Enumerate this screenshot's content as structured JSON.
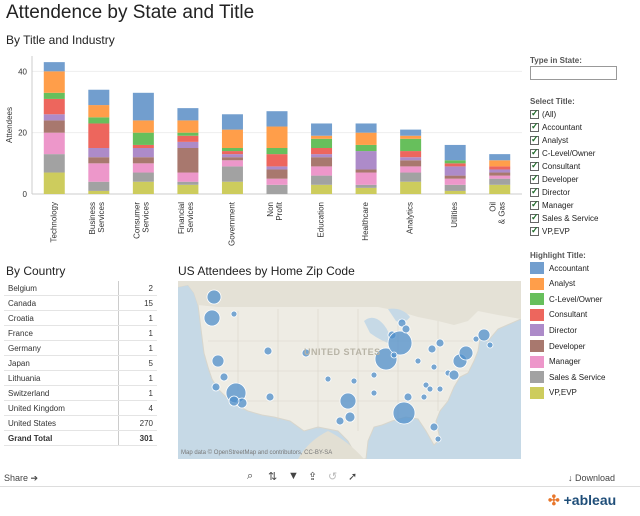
{
  "title": "Attendence by State and Title",
  "bar_section_title": "By Title and Industry",
  "country_section_title": "By Country",
  "map_section_title": "US Attendees by Home Zip Code",
  "map_attribution": "Map data © OpenStreetMap and contributors, CC-BY-SA",
  "map_label": "UNITED STATES",
  "type_in_state": {
    "label": "Type in State:",
    "value": ""
  },
  "select_title": {
    "label": "Select Title:",
    "options": [
      "(All)",
      "Accountant",
      "Analyst",
      "C-Level/Owner",
      "Consultant",
      "Developer",
      "Director",
      "Manager",
      "Sales & Service",
      "VP,EVP"
    ]
  },
  "highlight_title": {
    "label": "Highlight Title:",
    "items": [
      {
        "label": "Accountant",
        "color": "#729ece"
      },
      {
        "label": "Analyst",
        "color": "#ff9e4a"
      },
      {
        "label": "C-Level/Owner",
        "color": "#67bf5c"
      },
      {
        "label": "Consultant",
        "color": "#ed665d"
      },
      {
        "label": "Director",
        "color": "#ad8bc9"
      },
      {
        "label": "Developer",
        "color": "#a8786e"
      },
      {
        "label": "Manager",
        "color": "#ed97ca"
      },
      {
        "label": "Sales & Service",
        "color": "#a2a2a2"
      },
      {
        "label": "VP,EVP",
        "color": "#cdcc5d"
      }
    ]
  },
  "countries": [
    {
      "name": "Belgium",
      "value": "2"
    },
    {
      "name": "Canada",
      "value": "15"
    },
    {
      "name": "Croatia",
      "value": "1"
    },
    {
      "name": "France",
      "value": "1"
    },
    {
      "name": "Germany",
      "value": "1"
    },
    {
      "name": "Japan",
      "value": "5"
    },
    {
      "name": "Lithuania",
      "value": "1"
    },
    {
      "name": "Switzerland",
      "value": "1"
    },
    {
      "name": "United Kingdom",
      "value": "4"
    },
    {
      "name": "United States",
      "value": "270"
    }
  ],
  "grand_total": {
    "label": "Grand Total",
    "value": "301"
  },
  "footer": {
    "share": "Share",
    "download": "Download",
    "brand": "+ableau"
  },
  "chart_data": {
    "type": "bar",
    "stacked": true,
    "ylabel": "Attendees",
    "yticks": [
      0,
      20,
      40
    ],
    "ylim": [
      0,
      45
    ],
    "categories": [
      "Technology",
      "Business Services",
      "Consumer Services",
      "Financial Services",
      "Government",
      "Non Profit",
      "Education",
      "Healthcare",
      "Analytics",
      "Utilities",
      "Oil & Gas"
    ],
    "series": [
      {
        "name": "VP,EVP",
        "color": "#cdcc5d",
        "values": [
          7,
          1,
          4,
          3,
          4,
          0,
          3,
          2,
          4,
          1,
          3
        ]
      },
      {
        "name": "Sales & Service",
        "color": "#a2a2a2",
        "values": [
          6,
          3,
          3,
          1,
          5,
          3,
          3,
          1,
          3,
          2,
          2
        ]
      },
      {
        "name": "Manager",
        "color": "#ed97ca",
        "values": [
          7,
          6,
          3,
          3,
          2,
          2,
          3,
          4,
          2,
          2,
          1
        ]
      },
      {
        "name": "Developer",
        "color": "#a8786e",
        "values": [
          4,
          2,
          2,
          8,
          1,
          3,
          3,
          1,
          2,
          1,
          1
        ]
      },
      {
        "name": "Director",
        "color": "#ad8bc9",
        "values": [
          2,
          3,
          3,
          2,
          1,
          1,
          1,
          6,
          1,
          3,
          1
        ]
      },
      {
        "name": "Consultant",
        "color": "#ed665d",
        "values": [
          5,
          8,
          1,
          2,
          1,
          4,
          2,
          0,
          2,
          1,
          1
        ]
      },
      {
        "name": "C-Level/Owner",
        "color": "#67bf5c",
        "values": [
          2,
          2,
          4,
          1,
          1,
          2,
          3,
          2,
          4,
          1,
          0
        ]
      },
      {
        "name": "Analyst",
        "color": "#ff9e4a",
        "values": [
          7,
          4,
          4,
          4,
          6,
          7,
          1,
          4,
          1,
          0,
          2
        ]
      },
      {
        "name": "Accountant",
        "color": "#729ece",
        "values": [
          3,
          5,
          9,
          4,
          5,
          5,
          4,
          3,
          2,
          5,
          2
        ]
      }
    ]
  }
}
